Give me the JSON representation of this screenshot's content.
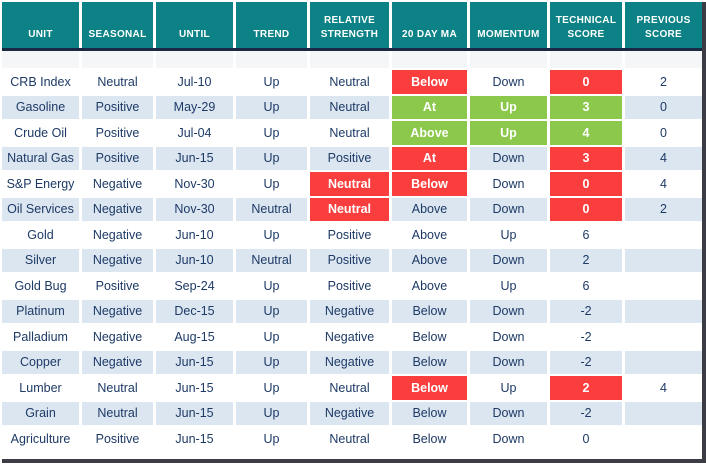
{
  "colors": {
    "header_bg": "#0C8286",
    "header_text": "#FFFFFF",
    "divider": "#1B2A44",
    "shadow": "#3C3C44",
    "stripe": "#DCE6F1",
    "red": "#FA3E3E",
    "green": "#8CC84B",
    "text": "#1D3A66"
  },
  "chart_data": {
    "type": "table",
    "columns": [
      "UNIT",
      "SEASONAL",
      "UNTIL",
      "TREND",
      "RELATIVE STRENGTH",
      "20 DAY MA",
      "MOMENTUM",
      "TECHNICAL SCORE",
      "PREVIOUS SCORE"
    ],
    "highlight_legend": {
      "red": "negative signal highlight",
      "green": "positive signal highlight"
    },
    "rows": [
      {
        "cells": [
          {
            "t": "CRB Index"
          },
          {
            "t": "Neutral"
          },
          {
            "t": "Jul-10"
          },
          {
            "t": "Up"
          },
          {
            "t": "Neutral"
          },
          {
            "t": "Below",
            "h": "red"
          },
          {
            "t": "Down"
          },
          {
            "t": "0",
            "h": "red"
          },
          {
            "t": "2"
          }
        ]
      },
      {
        "cells": [
          {
            "t": "Gasoline"
          },
          {
            "t": "Positive"
          },
          {
            "t": "May-29"
          },
          {
            "t": "Up"
          },
          {
            "t": "Neutral"
          },
          {
            "t": "At",
            "h": "green"
          },
          {
            "t": "Up",
            "h": "green"
          },
          {
            "t": "3",
            "h": "green"
          },
          {
            "t": "0"
          }
        ]
      },
      {
        "cells": [
          {
            "t": "Crude Oil"
          },
          {
            "t": "Positive"
          },
          {
            "t": "Jul-04"
          },
          {
            "t": "Up"
          },
          {
            "t": "Neutral"
          },
          {
            "t": "Above",
            "h": "green"
          },
          {
            "t": "Up",
            "h": "green"
          },
          {
            "t": "4",
            "h": "green"
          },
          {
            "t": "0"
          }
        ]
      },
      {
        "cells": [
          {
            "t": "Natural Gas"
          },
          {
            "t": "Positive"
          },
          {
            "t": "Jun-15"
          },
          {
            "t": "Up"
          },
          {
            "t": "Positive"
          },
          {
            "t": "At",
            "h": "red"
          },
          {
            "t": "Down"
          },
          {
            "t": "3",
            "h": "red"
          },
          {
            "t": "4"
          }
        ]
      },
      {
        "cells": [
          {
            "t": "S&P Energy"
          },
          {
            "t": "Negative"
          },
          {
            "t": "Nov-30"
          },
          {
            "t": "Up"
          },
          {
            "t": "Neutral",
            "h": "red"
          },
          {
            "t": "Below",
            "h": "red"
          },
          {
            "t": "Down"
          },
          {
            "t": "0",
            "h": "red"
          },
          {
            "t": "4"
          }
        ]
      },
      {
        "cells": [
          {
            "t": "Oil Services"
          },
          {
            "t": "Negative"
          },
          {
            "t": "Nov-30"
          },
          {
            "t": "Neutral"
          },
          {
            "t": "Neutral",
            "h": "red"
          },
          {
            "t": "Above"
          },
          {
            "t": "Down"
          },
          {
            "t": "0",
            "h": "red"
          },
          {
            "t": "2"
          }
        ]
      },
      {
        "cells": [
          {
            "t": "Gold"
          },
          {
            "t": "Negative"
          },
          {
            "t": "Jun-10"
          },
          {
            "t": "Up"
          },
          {
            "t": "Positive"
          },
          {
            "t": "Above"
          },
          {
            "t": "Up"
          },
          {
            "t": "6"
          },
          {
            "t": ""
          }
        ]
      },
      {
        "cells": [
          {
            "t": "Silver"
          },
          {
            "t": "Negative"
          },
          {
            "t": "Jun-10"
          },
          {
            "t": "Neutral"
          },
          {
            "t": "Positive"
          },
          {
            "t": "Above"
          },
          {
            "t": "Down"
          },
          {
            "t": "2"
          },
          {
            "t": ""
          }
        ]
      },
      {
        "cells": [
          {
            "t": "Gold Bug"
          },
          {
            "t": "Positive"
          },
          {
            "t": "Sep-24"
          },
          {
            "t": "Up"
          },
          {
            "t": "Positive"
          },
          {
            "t": "Above"
          },
          {
            "t": "Up"
          },
          {
            "t": "6"
          },
          {
            "t": ""
          }
        ]
      },
      {
        "cells": [
          {
            "t": "Platinum"
          },
          {
            "t": "Negative"
          },
          {
            "t": "Dec-15"
          },
          {
            "t": "Up"
          },
          {
            "t": "Negative"
          },
          {
            "t": "Below"
          },
          {
            "t": "Down"
          },
          {
            "t": "-2"
          },
          {
            "t": ""
          }
        ]
      },
      {
        "cells": [
          {
            "t": "Palladium"
          },
          {
            "t": "Negative"
          },
          {
            "t": "Aug-15"
          },
          {
            "t": "Up"
          },
          {
            "t": "Negative"
          },
          {
            "t": "Below"
          },
          {
            "t": "Down"
          },
          {
            "t": "-2"
          },
          {
            "t": ""
          }
        ]
      },
      {
        "cells": [
          {
            "t": "Copper"
          },
          {
            "t": "Negative"
          },
          {
            "t": "Jun-15"
          },
          {
            "t": "Up"
          },
          {
            "t": "Negative"
          },
          {
            "t": "Below"
          },
          {
            "t": "Down"
          },
          {
            "t": "-2"
          },
          {
            "t": ""
          }
        ]
      },
      {
        "cells": [
          {
            "t": "Lumber"
          },
          {
            "t": "Neutral"
          },
          {
            "t": "Jun-15"
          },
          {
            "t": "Up"
          },
          {
            "t": "Neutral"
          },
          {
            "t": "Below",
            "h": "red"
          },
          {
            "t": "Up"
          },
          {
            "t": "2",
            "h": "red"
          },
          {
            "t": "4"
          }
        ]
      },
      {
        "cells": [
          {
            "t": "Grain"
          },
          {
            "t": "Neutral"
          },
          {
            "t": "Jun-15"
          },
          {
            "t": "Up"
          },
          {
            "t": "Negative"
          },
          {
            "t": "Below"
          },
          {
            "t": "Down"
          },
          {
            "t": "-2"
          },
          {
            "t": ""
          }
        ]
      },
      {
        "cells": [
          {
            "t": "Agriculture"
          },
          {
            "t": "Positive"
          },
          {
            "t": "Jun-15"
          },
          {
            "t": "Up"
          },
          {
            "t": "Neutral"
          },
          {
            "t": "Below"
          },
          {
            "t": "Down"
          },
          {
            "t": "0"
          },
          {
            "t": ""
          }
        ]
      }
    ]
  }
}
